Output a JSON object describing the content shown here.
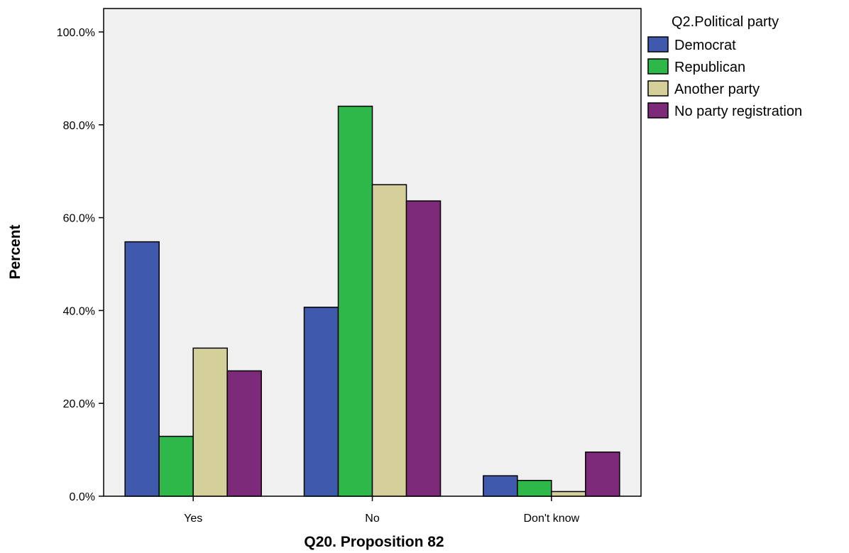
{
  "chart_data": {
    "type": "bar",
    "title": "",
    "xlabel": "Q20. Proposition 82",
    "ylabel": "Percent",
    "categories": [
      "Yes",
      "No",
      "Don't know"
    ],
    "ylim": [
      0,
      100
    ],
    "yticks": [
      "0.0%",
      "20.0%",
      "40.0%",
      "60.0%",
      "80.0%",
      "100.0%"
    ],
    "grid": false,
    "legend": {
      "title": "Q2.Political party",
      "position": "right"
    },
    "series": [
      {
        "name": "Democrat",
        "color": "#3f59ad",
        "values": [
          54.8,
          40.7,
          4.4
        ]
      },
      {
        "name": "Republican",
        "color": "#2eb84a",
        "values": [
          12.9,
          84.0,
          3.4
        ]
      },
      {
        "name": "Another party",
        "color": "#d5cf9a",
        "values": [
          31.9,
          67.1,
          1.0
        ]
      },
      {
        "name": "No party registration",
        "color": "#7e2a7a",
        "values": [
          27.0,
          63.6,
          9.5
        ]
      }
    ],
    "plot_background": "#f0f0f0"
  }
}
